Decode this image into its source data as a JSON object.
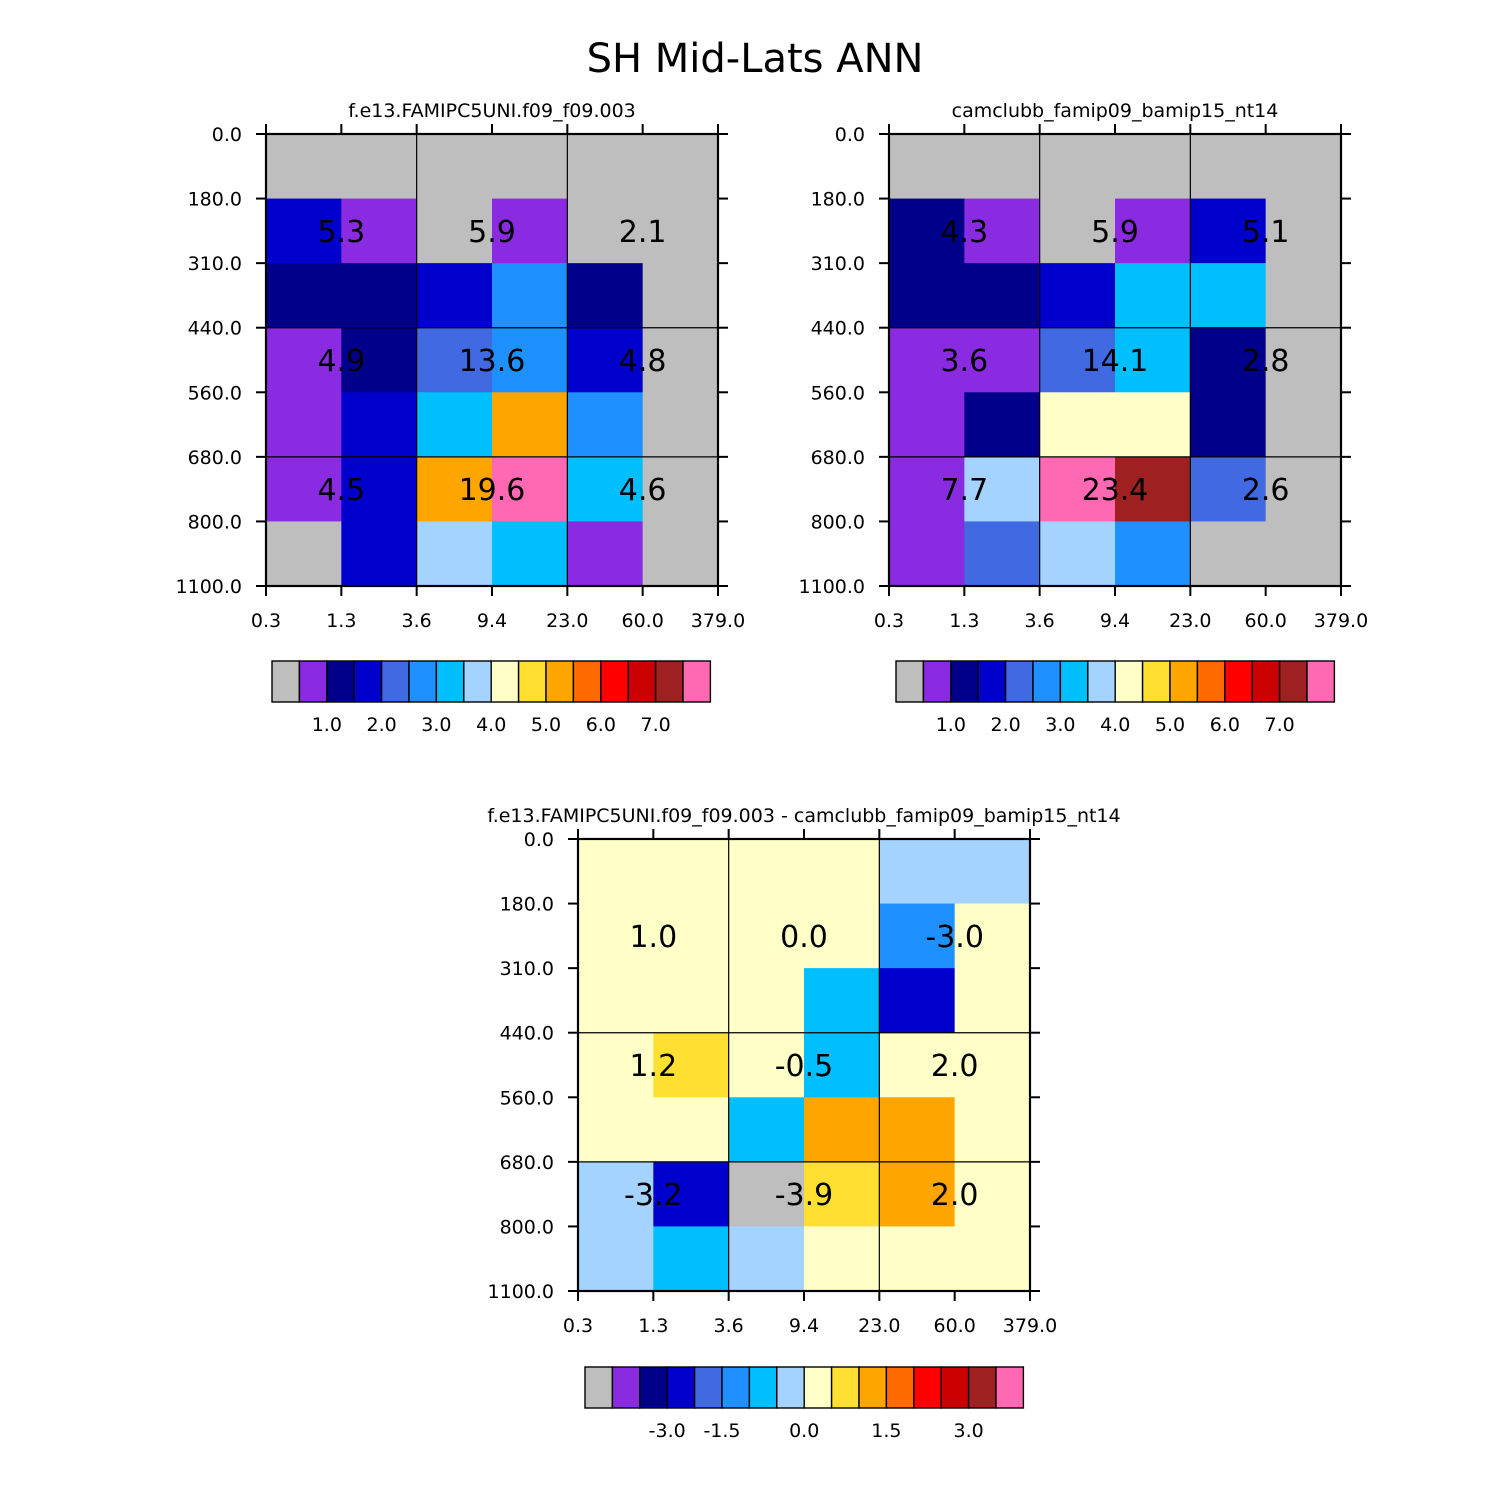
{
  "title": "SH Mid-Lats ANN",
  "x_tick_labels": [
    "0.3",
    "1.3",
    "3.6",
    "9.4",
    "23.0",
    "60.0",
    "379.0"
  ],
  "y_tick_labels": [
    "0.0",
    "180.0",
    "310.0",
    "440.0",
    "560.0",
    "680.0",
    "800.0",
    "1100.0"
  ],
  "chart_data": [
    {
      "type": "heatmap",
      "title": "f.e13.FAMIPC5UNI.f09_f09.003",
      "xlabel": "",
      "ylabel": "",
      "x_ticks": [
        "0.3",
        "1.3",
        "3.6",
        "9.4",
        "23.0",
        "60.0",
        "379.0"
      ],
      "y_ticks": [
        "0.0",
        "180.0",
        "310.0",
        "440.0",
        "560.0",
        "680.0",
        "800.0",
        "1100.0"
      ],
      "cell_colors": [
        [
          "#BEBEBE",
          "#BEBEBE",
          "#BEBEBE",
          "#BEBEBE",
          "#BEBEBE",
          "#BEBEBE"
        ],
        [
          "#0000CD",
          "#8A2BE2",
          "#BEBEBE",
          "#8A2BE2",
          "#BEBEBE",
          "#BEBEBE"
        ],
        [
          "#00008B",
          "#00008B",
          "#0000CD",
          "#1E90FF",
          "#00008B",
          "#BEBEBE"
        ],
        [
          "#8A2BE2",
          "#00008B",
          "#4169E1",
          "#1E90FF",
          "#0000CD",
          "#BEBEBE"
        ],
        [
          "#8A2BE2",
          "#0000CD",
          "#00BFFF",
          "#FFA500",
          "#1E90FF",
          "#BEBEBE"
        ],
        [
          "#8A2BE2",
          "#0000CD",
          "#FFA500",
          "#FF69B4",
          "#00BFFF",
          "#BEBEBE"
        ],
        [
          "#BEBEBE",
          "#0000CD",
          "#A4D3FF",
          "#00BFFF",
          "#8A2BE2",
          "#BEBEBE"
        ]
      ],
      "box_values": [
        [
          "5.3",
          "5.9",
          "2.1"
        ],
        [
          "4.9",
          "13.6",
          "4.8"
        ],
        [
          "4.5",
          "19.6",
          "4.6"
        ]
      ]
    },
    {
      "type": "heatmap",
      "title": "camclubb_famip09_bamip15_nt14",
      "xlabel": "",
      "ylabel": "",
      "x_ticks": [
        "0.3",
        "1.3",
        "3.6",
        "9.4",
        "23.0",
        "60.0",
        "379.0"
      ],
      "y_ticks": [
        "0.0",
        "180.0",
        "310.0",
        "440.0",
        "560.0",
        "680.0",
        "800.0",
        "1100.0"
      ],
      "cell_colors": [
        [
          "#BEBEBE",
          "#BEBEBE",
          "#BEBEBE",
          "#BEBEBE",
          "#BEBEBE",
          "#BEBEBE"
        ],
        [
          "#00008B",
          "#8A2BE2",
          "#BEBEBE",
          "#8A2BE2",
          "#0000CD",
          "#BEBEBE"
        ],
        [
          "#00008B",
          "#00008B",
          "#0000CD",
          "#00BFFF",
          "#00BFFF",
          "#BEBEBE"
        ],
        [
          "#8A2BE2",
          "#8A2BE2",
          "#4169E1",
          "#00BFFF",
          "#00008B",
          "#BEBEBE"
        ],
        [
          "#8A2BE2",
          "#00008B",
          "#FFFFC8",
          "#FFFFC8",
          "#00008B",
          "#BEBEBE"
        ],
        [
          "#8A2BE2",
          "#A4D3FF",
          "#FF69B4",
          "#9E2020",
          "#4169E1",
          "#BEBEBE"
        ],
        [
          "#8A2BE2",
          "#4169E1",
          "#A4D3FF",
          "#1E90FF",
          "#BEBEBE",
          "#BEBEBE"
        ]
      ],
      "box_values": [
        [
          "4.3",
          "5.9",
          "5.1"
        ],
        [
          "3.6",
          "14.1",
          "2.8"
        ],
        [
          "7.7",
          "23.4",
          "2.6"
        ]
      ]
    },
    {
      "type": "heatmap",
      "title": "f.e13.FAMIPC5UNI.f09_f09.003 - camclubb_famip09_bamip15_nt14",
      "xlabel": "",
      "ylabel": "",
      "x_ticks": [
        "0.3",
        "1.3",
        "3.6",
        "9.4",
        "23.0",
        "60.0",
        "379.0"
      ],
      "y_ticks": [
        "0.0",
        "180.0",
        "310.0",
        "440.0",
        "560.0",
        "680.0",
        "800.0",
        "1100.0"
      ],
      "cell_colors": [
        [
          "#FFFFC8",
          "#FFFFC8",
          "#FFFFC8",
          "#FFFFC8",
          "#A4D3FF",
          "#A4D3FF"
        ],
        [
          "#FFFFC8",
          "#FFFFC8",
          "#FFFFC8",
          "#FFFFC8",
          "#1E90FF",
          "#FFFFC8"
        ],
        [
          "#FFFFC8",
          "#FFFFC8",
          "#FFFFC8",
          "#00BFFF",
          "#0000CD",
          "#FFFFC8"
        ],
        [
          "#FFFFC8",
          "#FFE032",
          "#FFFFC8",
          "#00BFFF",
          "#FFFFC8",
          "#FFFFC8"
        ],
        [
          "#FFFFC8",
          "#FFFFC8",
          "#00BFFF",
          "#FFA500",
          "#FFA500",
          "#FFFFC8"
        ],
        [
          "#A4D3FF",
          "#0000CD",
          "#BEBEBE",
          "#FFE032",
          "#FFA500",
          "#FFFFC8"
        ],
        [
          "#A4D3FF",
          "#00BFFF",
          "#A4D3FF",
          "#FFFFC8",
          "#FFFFC8",
          "#FFFFC8"
        ]
      ],
      "box_values": [
        [
          "1.0",
          "0.0",
          "-3.0"
        ],
        [
          "1.2",
          "-0.5",
          "2.0"
        ],
        [
          "-3.2",
          "-3.9",
          "2.0"
        ]
      ]
    }
  ],
  "colorbar_colors": [
    "#BEBEBE",
    "#8A2BE2",
    "#00008B",
    "#0000CD",
    "#4169E1",
    "#1E90FF",
    "#00BFFF",
    "#A4D3FF",
    "#FFFFC8",
    "#FFE032",
    "#FFA500",
    "#FF6A00",
    "#FF0000",
    "#CD0000",
    "#9E2020",
    "#FF69B4"
  ],
  "colorbars": [
    {
      "labels": [
        {
          "text": "1.0",
          "boundary": 2
        },
        {
          "text": "2.0",
          "boundary": 4
        },
        {
          "text": "3.0",
          "boundary": 6
        },
        {
          "text": "4.0",
          "boundary": 8
        },
        {
          "text": "5.0",
          "boundary": 10
        },
        {
          "text": "6.0",
          "boundary": 12
        },
        {
          "text": "7.0",
          "boundary": 14
        }
      ]
    },
    {
      "labels": [
        {
          "text": "1.0",
          "boundary": 2
        },
        {
          "text": "2.0",
          "boundary": 4
        },
        {
          "text": "3.0",
          "boundary": 6
        },
        {
          "text": "4.0",
          "boundary": 8
        },
        {
          "text": "5.0",
          "boundary": 10
        },
        {
          "text": "6.0",
          "boundary": 12
        },
        {
          "text": "7.0",
          "boundary": 14
        }
      ]
    },
    {
      "labels": [
        {
          "text": "-3.0",
          "boundary": 3
        },
        {
          "text": "-1.5",
          "boundary": 5
        },
        {
          "text": "0.0",
          "boundary": 8
        },
        {
          "text": "1.5",
          "boundary": 11
        },
        {
          "text": "3.0",
          "boundary": 14
        }
      ]
    }
  ]
}
